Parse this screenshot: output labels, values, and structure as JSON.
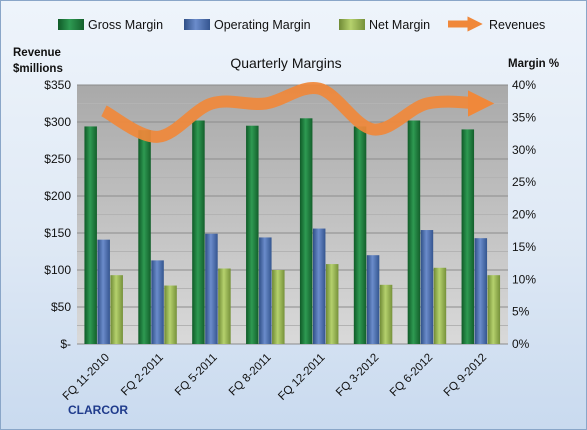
{
  "chart_data": {
    "type": "bar",
    "title": "Quarterly Margins",
    "company": "CLARCOR",
    "y_left_label": [
      "Revenue",
      "$millions"
    ],
    "y_right_label": "Margin %",
    "categories": [
      "FQ 11-2010",
      "FQ 2-2011",
      "FQ 5-2011",
      "FQ 8-2011",
      "FQ 12-2011",
      "FQ 3-2012",
      "FQ 6-2012",
      "FQ 9-2012"
    ],
    "y_left_range": [
      0,
      350
    ],
    "y_left_ticks": [
      "$-",
      "$50",
      "$100",
      "$150",
      "$200",
      "$250",
      "$300",
      "$350"
    ],
    "y_right_range": [
      0,
      40
    ],
    "y_right_ticks": [
      "0%",
      "5%",
      "10%",
      "15%",
      "20%",
      "25%",
      "30%",
      "35%",
      "40%"
    ],
    "grid": true,
    "legend_position": "top",
    "series": [
      {
        "name": "Gross Margin",
        "kind": "bar",
        "axis": "left",
        "color": "#1e7a3c",
        "values": [
          294,
          289,
          302,
          295,
          305,
          294,
          302,
          290
        ]
      },
      {
        "name": "Operating Margin",
        "kind": "bar",
        "axis": "left",
        "color": "#4a6fae",
        "values": [
          141,
          113,
          149,
          144,
          156,
          120,
          154,
          143
        ]
      },
      {
        "name": "Net Margin",
        "kind": "bar",
        "axis": "left",
        "color": "#9bbb59",
        "values": [
          93,
          79,
          102,
          100,
          108,
          80,
          103,
          93
        ]
      },
      {
        "name": "Revenues",
        "kind": "line",
        "axis": "left",
        "color": "#f0883a",
        "values": [
          315,
          280,
          325,
          325,
          345,
          290,
          325,
          325
        ]
      }
    ]
  }
}
